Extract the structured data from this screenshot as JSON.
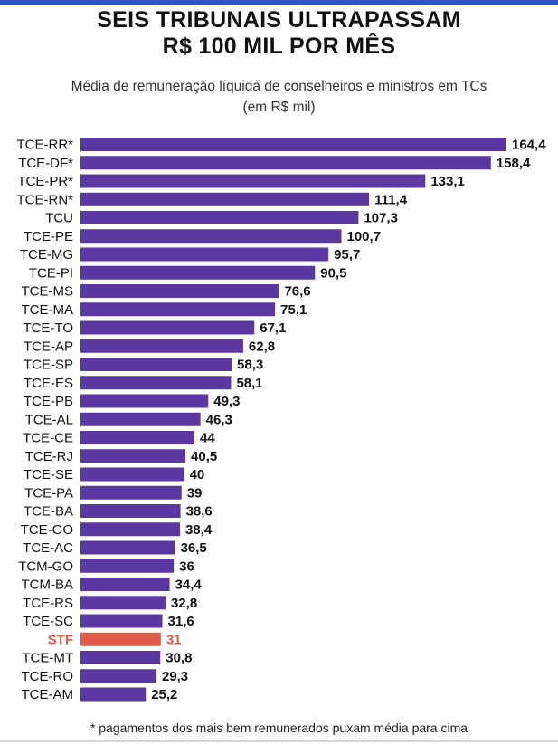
{
  "title_line1": "SEIS TRIBUNAIS ULTRAPASSAM",
  "title_line2": "R$ 100 MIL POR MÊS",
  "subtitle_line1": "Média de remuneração líquida de conselheiros e ministros em TCs",
  "subtitle_line2": "(em R$ mil)",
  "footnote": "* pagamentos dos mais bem remunerados puxam média para cima",
  "colors": {
    "bar": "#5b37a2",
    "highlight": "#e35a48",
    "label": "#111111"
  },
  "chart_data": {
    "type": "bar",
    "orientation": "horizontal",
    "categories": [
      "TCE-RR*",
      "TCE-DF*",
      "TCE-PR*",
      "TCE-RN*",
      "TCU",
      "TCE-PE",
      "TCE-MG",
      "TCE-PI",
      "TCE-MS",
      "TCE-MA",
      "TCE-TO",
      "TCE-AP",
      "TCE-SP",
      "TCE-ES",
      "TCE-PB",
      "TCE-AL",
      "TCE-CE",
      "TCE-RJ",
      "TCE-SE",
      "TCE-PA",
      "TCE-BA",
      "TCE-GO",
      "TCE-AC",
      "TCM-GO",
      "TCM-BA",
      "TCE-RS",
      "TCE-SC",
      "STF",
      "TCE-MT",
      "TCE-RO",
      "TCE-AM"
    ],
    "values": [
      164.4,
      158.4,
      133.1,
      111.4,
      107.3,
      100.7,
      95.7,
      90.5,
      76.6,
      75.1,
      67.1,
      62.8,
      58.3,
      58.1,
      49.3,
      46.3,
      44,
      40.5,
      40,
      39,
      38.6,
      38.4,
      36.5,
      36,
      34.4,
      32.8,
      31.6,
      31,
      30.8,
      29.3,
      25.2
    ],
    "value_labels": [
      "164,4",
      "158,4",
      "133,1",
      "111,4",
      "107,3",
      "100,7",
      "95,7",
      "90,5",
      "76,6",
      "75,1",
      "67,1",
      "62,8",
      "58,3",
      "58,1",
      "49,3",
      "46,3",
      "44",
      "40,5",
      "40",
      "39",
      "38,6",
      "38,4",
      "36,5",
      "36",
      "34,4",
      "32,8",
      "31,6",
      "31",
      "30,8",
      "29,3",
      "25,2"
    ],
    "highlight": "STF",
    "xlim": [
      0,
      164.4
    ],
    "grid": false,
    "legend": "none"
  }
}
